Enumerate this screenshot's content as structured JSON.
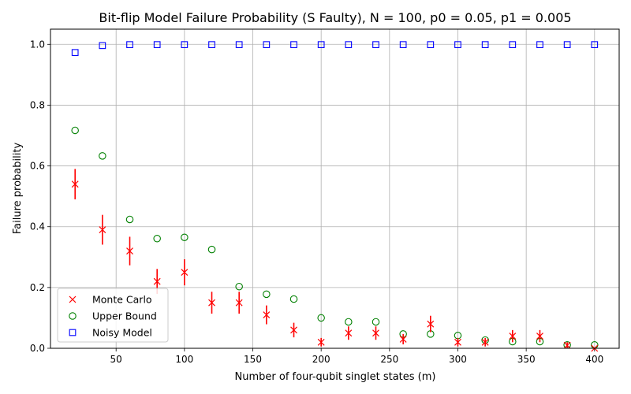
{
  "chart_data": {
    "type": "scatter",
    "title": "Bit-flip Model Failure Probability (S Faulty), N = 100, p0 = 0.05, p1 = 0.005",
    "xlabel": "Number of four-qubit singlet states (m)",
    "ylabel": "Failure probability",
    "xlim": [
      2,
      418
    ],
    "ylim": [
      0,
      1.05
    ],
    "xticks": [
      50,
      100,
      150,
      200,
      250,
      300,
      350,
      400
    ],
    "yticks": [
      0.0,
      0.2,
      0.4,
      0.6,
      0.8,
      1.0
    ],
    "xtick_labels": [
      "50",
      "100",
      "150",
      "200",
      "250",
      "300",
      "350",
      "400"
    ],
    "ytick_labels": [
      "0.0",
      "0.2",
      "0.4",
      "0.6",
      "0.8",
      "1.0"
    ],
    "grid": true,
    "legend_position": "lower-left",
    "series": [
      {
        "name": "Monte Carlo",
        "marker": "x",
        "color": "#ff0000",
        "x": [
          20,
          40,
          60,
          80,
          100,
          120,
          140,
          160,
          180,
          200,
          220,
          240,
          260,
          280,
          300,
          320,
          340,
          360,
          380,
          400
        ],
        "y": [
          0.54,
          0.39,
          0.32,
          0.22,
          0.25,
          0.15,
          0.15,
          0.11,
          0.06,
          0.02,
          0.05,
          0.05,
          0.03,
          0.08,
          0.02,
          0.02,
          0.04,
          0.04,
          0.01,
          0.0
        ],
        "yerr": [
          0.05,
          0.049,
          0.047,
          0.041,
          0.043,
          0.036,
          0.036,
          0.031,
          0.024,
          0.014,
          0.022,
          0.022,
          0.017,
          0.027,
          0.014,
          0.014,
          0.02,
          0.02,
          0.01,
          0.0
        ]
      },
      {
        "name": "Upper Bound",
        "marker": "circle",
        "color": "#008000",
        "x": [
          20,
          40,
          60,
          80,
          100,
          120,
          140,
          160,
          180,
          200,
          220,
          240,
          260,
          280,
          300,
          320,
          340,
          360,
          380,
          400
        ],
        "y": [
          0.717,
          0.633,
          0.424,
          0.361,
          0.365,
          0.325,
          0.203,
          0.178,
          0.162,
          0.1,
          0.087,
          0.087,
          0.047,
          0.047,
          0.042,
          0.027,
          0.022,
          0.022,
          0.011,
          0.011
        ]
      },
      {
        "name": "Noisy Model",
        "marker": "square",
        "color": "#0000ff",
        "x": [
          20,
          40,
          60,
          80,
          100,
          120,
          140,
          160,
          180,
          200,
          220,
          240,
          260,
          280,
          300,
          320,
          340,
          360,
          380,
          400
        ],
        "y": [
          0.973,
          0.996,
          0.999,
          0.999,
          0.999,
          0.999,
          0.999,
          0.999,
          0.999,
          0.999,
          0.999,
          0.999,
          0.999,
          0.999,
          0.999,
          0.999,
          0.999,
          0.999,
          0.999,
          0.999
        ]
      }
    ]
  }
}
